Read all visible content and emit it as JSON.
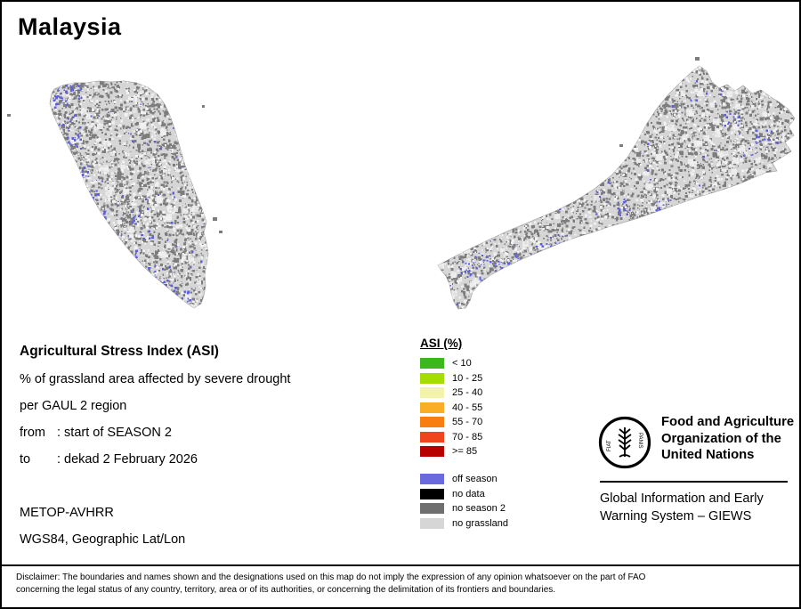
{
  "title": "Malaysia",
  "info_block": {
    "heading": "Agricultural Stress Index (ASI)",
    "description_line1": "% of grassland area affected by severe drought",
    "description_line2": "per GAUL 2 region",
    "from_label": "from",
    "from_value": ": start of SEASON 2",
    "to_label": "to",
    "to_value": ": dekad 2 February 2026",
    "sensor": "METOP-AVHRR",
    "projection": "WGS84, Geographic Lat/Lon"
  },
  "legend": {
    "title": "ASI (%)",
    "asi_classes": [
      {
        "label": "< 10",
        "color": "#3cb71c"
      },
      {
        "label": "10 - 25",
        "color": "#a6dd00"
      },
      {
        "label": "25 - 40",
        "color": "#f3f3a9"
      },
      {
        "label": "40 - 55",
        "color": "#f9ae26"
      },
      {
        "label": "55 - 70",
        "color": "#f87e12"
      },
      {
        "label": "70 - 85",
        "color": "#f0441c"
      },
      {
        "label": ">= 85",
        "color": "#b70000"
      }
    ],
    "other_classes": [
      {
        "label": "off season",
        "color": "#6a6ade"
      },
      {
        "label": "no data",
        "color": "#000000"
      },
      {
        "label": "no season 2",
        "color": "#6f6f6f"
      },
      {
        "label": "no grassland",
        "color": "#d6d6d6"
      }
    ]
  },
  "fao_block": {
    "motto": [
      "FIAT",
      "PANIS"
    ],
    "org_name_lines": [
      "Food and Agriculture",
      "Organization of the",
      "United Nations"
    ],
    "giews_lines": [
      "Global Information and Early",
      "Warning System – GIEWS"
    ]
  },
  "map": {
    "base_fill": "#d6d6d6",
    "speckle_no_season2": "#7d7d7d",
    "speckle_light": "#f1f1f1",
    "speckle_off_season": "#5f5fde"
  },
  "disclaimer_lines": [
    "Disclaimer: The boundaries and names shown and the designations used on this map do not imply the expression of any opinion whatsoever on the part of FAO",
    "concerning the legal status of any country, territory, area or of its authorities, or concerning the delimitation of its frontiers and boundaries."
  ]
}
